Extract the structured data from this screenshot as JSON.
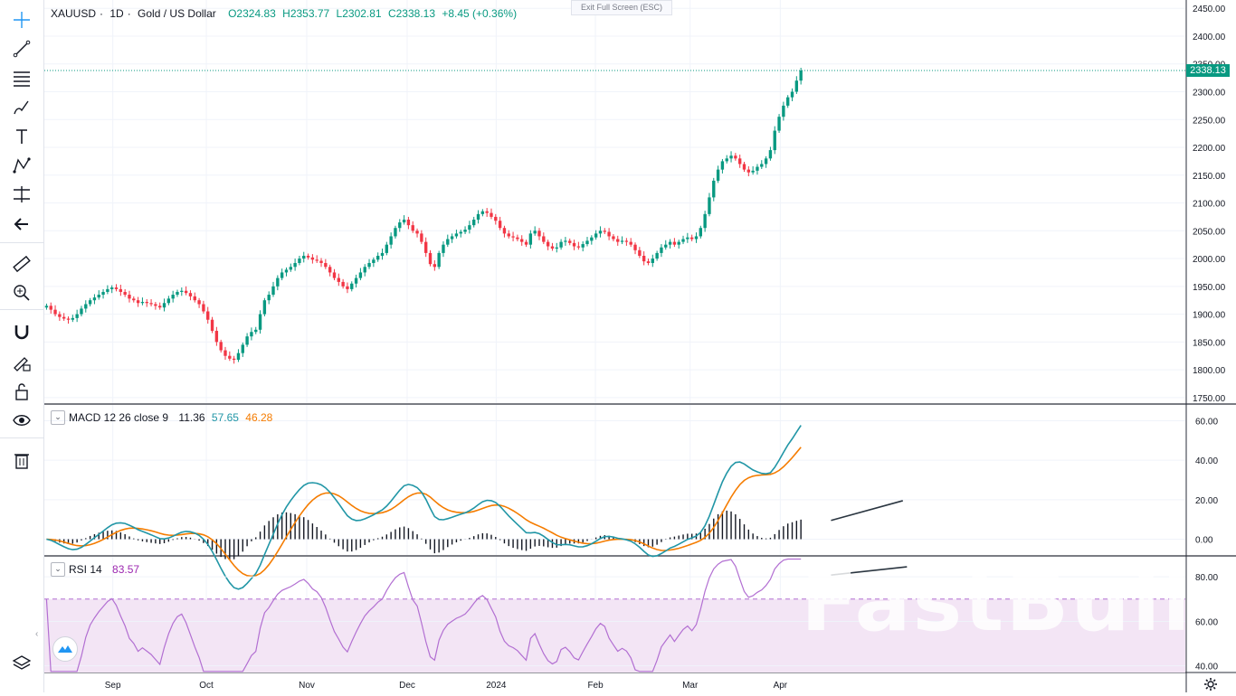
{
  "header": {
    "symbol": "XAUUSD",
    "sep1": "·",
    "interval": "1D",
    "sep2": "·",
    "name": "Gold / US Dollar",
    "open": "O2324.83",
    "high": "H2353.77",
    "low": "L2302.81",
    "close": "C2338.13",
    "change": "+8.45 (+0.36%)",
    "exit_fullscreen": "Exit Full Screen (ESC)",
    "watermark": "FastBull",
    "last_price_label": "2338.13"
  },
  "macd_legend": {
    "title": "MACD 12 26 close 9",
    "hist": "11.36",
    "macd": "57.65",
    "signal": "46.28"
  },
  "rsi_legend": {
    "title": "RSI 14",
    "value": "83.57"
  },
  "toolbar": {
    "icons": [
      "crosshair-icon",
      "trend-line-icon",
      "fib-icon",
      "brush-icon",
      "text-icon",
      "pattern-icon",
      "forecast-icon",
      "back-arrow-icon",
      "ruler-icon",
      "zoom-in-icon",
      "magnet-icon",
      "lock-draw-icon",
      "lock-icon",
      "eye-icon",
      "trash-icon"
    ]
  },
  "colors": {
    "up": "#089981",
    "down": "#f23645",
    "macd": "#2196a6",
    "signal": "#f57c00",
    "rsi": "#b26fd2",
    "rsi_band": "#f3e5f5",
    "trendline": "#2a3540"
  },
  "chart_data": [
    {
      "type": "candlestick",
      "symbol": "XAUUSD",
      "interval": "1D",
      "x_labels": [
        "Sep",
        "Oct",
        "Nov",
        "Dec",
        "2024",
        "Feb",
        "Mar",
        "Apr"
      ],
      "y_ticks": [
        2450,
        2400,
        2350,
        2300,
        2250,
        2200,
        2150,
        2100,
        2050,
        2000,
        1950,
        1900,
        1850,
        1800,
        1750
      ],
      "y_tick_labels": [
        "2450.00",
        "2400.00",
        "2350.00",
        "2300.00",
        "2250.00",
        "2200.00",
        "2150.00",
        "2100.00",
        "2050.00",
        "2000.00",
        "1950.00",
        "1900.00",
        "1850.00",
        "1800.00",
        "1750.00"
      ],
      "ylim": [
        1740,
        2465
      ],
      "last_price": 2338.13,
      "close_series": [
        1915,
        1908,
        1900,
        1895,
        1892,
        1890,
        1893,
        1900,
        1910,
        1918,
        1925,
        1930,
        1935,
        1940,
        1945,
        1948,
        1945,
        1940,
        1935,
        1928,
        1925,
        1920,
        1922,
        1920,
        1918,
        1915,
        1912,
        1920,
        1928,
        1935,
        1940,
        1942,
        1938,
        1932,
        1925,
        1918,
        1905,
        1890,
        1870,
        1850,
        1835,
        1825,
        1820,
        1818,
        1830,
        1845,
        1860,
        1868,
        1872,
        1900,
        1925,
        1935,
        1950,
        1965,
        1975,
        1980,
        1985,
        1992,
        2000,
        2005,
        2002,
        1998,
        1996,
        1992,
        1985,
        1975,
        1965,
        1958,
        1950,
        1945,
        1955,
        1965,
        1975,
        1985,
        1992,
        1998,
        2005,
        2010,
        2025,
        2040,
        2055,
        2065,
        2070,
        2060,
        2050,
        2045,
        2030,
        2010,
        1990,
        1985,
        2010,
        2025,
        2035,
        2040,
        2045,
        2048,
        2052,
        2060,
        2070,
        2080,
        2085,
        2082,
        2075,
        2068,
        2055,
        2045,
        2040,
        2038,
        2035,
        2030,
        2025,
        2045,
        2050,
        2040,
        2030,
        2022,
        2018,
        2020,
        2030,
        2032,
        2028,
        2022,
        2020,
        2026,
        2032,
        2038,
        2045,
        2050,
        2048,
        2040,
        2035,
        2030,
        2032,
        2030,
        2025,
        2015,
        2005,
        1995,
        1992,
        2000,
        2010,
        2020,
        2025,
        2030,
        2025,
        2030,
        2035,
        2038,
        2035,
        2040,
        2055,
        2080,
        2110,
        2140,
        2160,
        2175,
        2180,
        2185,
        2180,
        2170,
        2160,
        2155,
        2158,
        2165,
        2170,
        2180,
        2195,
        2230,
        2255,
        2275,
        2290,
        2300,
        2320,
        2338.13
      ],
      "series": [
        {
          "name": "MACD",
          "values": []
        },
        {
          "name": "Signal",
          "values": []
        }
      ]
    },
    {
      "type": "line",
      "name": "MACD 12 26 close 9",
      "y_tick_labels": [
        "60.00",
        "40.00",
        "20.00",
        "0.00"
      ],
      "ylim": [
        -8,
        68
      ],
      "histogram_last": 11.36,
      "macd_last": 57.65,
      "signal_last": 46.28,
      "trendline": {
        "from": [
          0.836,
          19.5
        ],
        "to": [
          0.985,
          9.5
        ]
      }
    },
    {
      "type": "line",
      "name": "RSI 14",
      "y_tick_labels": [
        "80.00",
        "60.00",
        "40.00"
      ],
      "ylim": [
        37,
        89
      ],
      "upper_band": 70,
      "value_last": 83.57,
      "trendline": {
        "from": [
          0.84,
          84.5
        ],
        "to": [
          0.985,
          80.8
        ]
      }
    }
  ]
}
